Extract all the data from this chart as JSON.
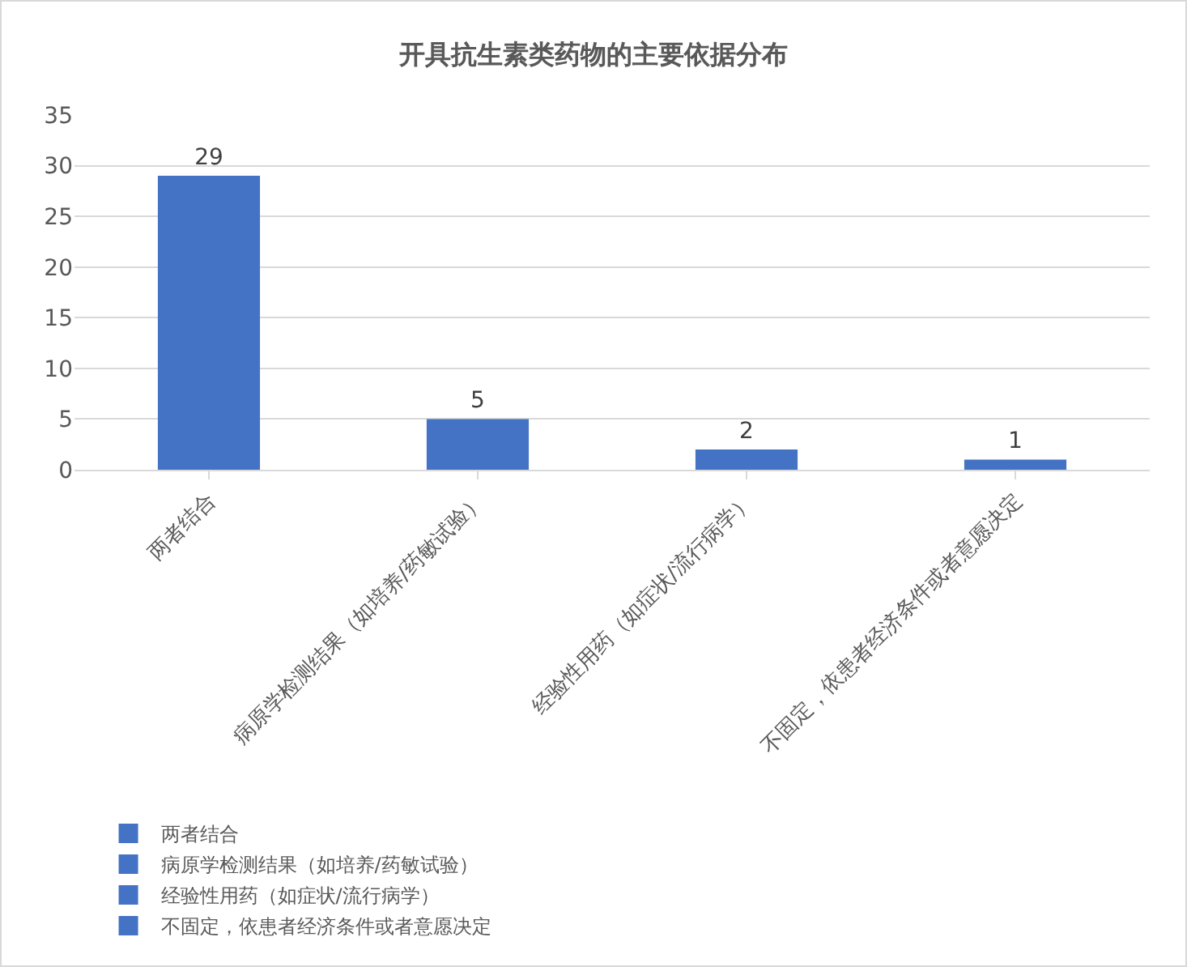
{
  "chart_data": {
    "type": "bar",
    "title": "开具抗生素类药物的主要依据分布",
    "categories": [
      "两者结合",
      "病原学检测结果（如培养/药敏试验）",
      "经验性用药（如症状/流行病学）",
      "不固定，依患者经济条件或者意愿决定"
    ],
    "series": [
      {
        "name": "两者结合",
        "color": "#4472c4",
        "values": [
          29,
          null,
          null,
          null
        ]
      },
      {
        "name": "病原学检测结果（如培养/药敏试验）",
        "color": "#4472c4",
        "values": [
          null,
          5,
          null,
          null
        ]
      },
      {
        "name": "经验性用药（如症状/流行病学）",
        "color": "#4472c4",
        "values": [
          null,
          null,
          2,
          null
        ]
      },
      {
        "name": "不固定，依患者经济条件或者意愿决定",
        "color": "#4472c4",
        "values": [
          null,
          null,
          null,
          1
        ]
      }
    ],
    "ylim": [
      0,
      35
    ],
    "yticks": [
      0,
      5,
      10,
      15,
      20,
      25,
      30,
      35
    ],
    "grid": "y",
    "legend": "bottom",
    "data_labels": true
  }
}
